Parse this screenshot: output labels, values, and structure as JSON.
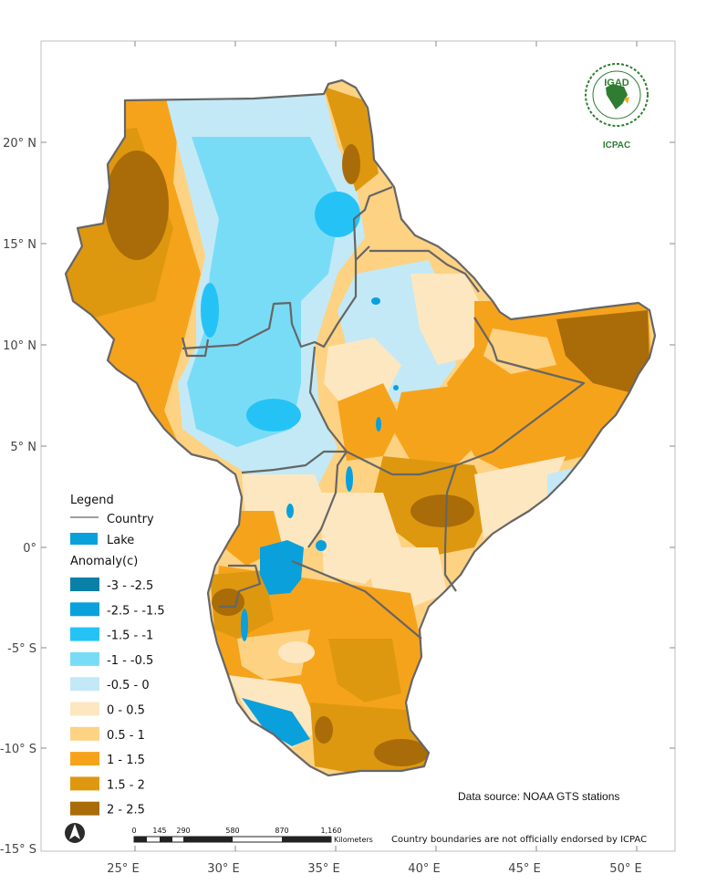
{
  "map": {
    "x_ticks": [
      "25° E",
      "30° E",
      "35° E",
      "40° E",
      "45° E",
      "50° E"
    ],
    "y_ticks": [
      "20° N",
      "15° N",
      "10° N",
      "5° N",
      "0°",
      "-5° S",
      "-10° S",
      "-15° S"
    ]
  },
  "legend": {
    "title": "Legend",
    "country_label": "Country",
    "lake_label": "Lake",
    "anomaly_title": "Anomaly(c)",
    "classes": [
      {
        "label": "-3 - -2.5",
        "color": "#0a7fa8"
      },
      {
        "label": "-2.5 - -1.5",
        "color": "#0aa0dc"
      },
      {
        "label": "-1.5 - -1",
        "color": "#25c3f5"
      },
      {
        "label": "-1 - -0.5",
        "color": "#79dcf7"
      },
      {
        "label": "-0.5 - 0",
        "color": "#c3e9f7"
      },
      {
        "label": "0 - 0.5",
        "color": "#fde7c1"
      },
      {
        "label": "0.5 - 1",
        "color": "#fdd283"
      },
      {
        "label": "1 - 1.5",
        "color": "#f6a31c"
      },
      {
        "label": "1.5 - 2",
        "color": "#de980f"
      },
      {
        "label": "2 - 2.5",
        "color": "#a96c08"
      }
    ],
    "lake_color": "#0aa0dc",
    "country_line_color": "#666666"
  },
  "data_source": "Data source: NOAA  GTS stations",
  "scale_bar": {
    "labels": [
      "0",
      "145",
      "290",
      "580",
      "870",
      "1,160"
    ],
    "unit": "Kilometers"
  },
  "disclaimer": "Country boundaries are not officially endorsed by ICPAC",
  "logo": {
    "top": "IGAD",
    "bottom": "ICPAC"
  }
}
